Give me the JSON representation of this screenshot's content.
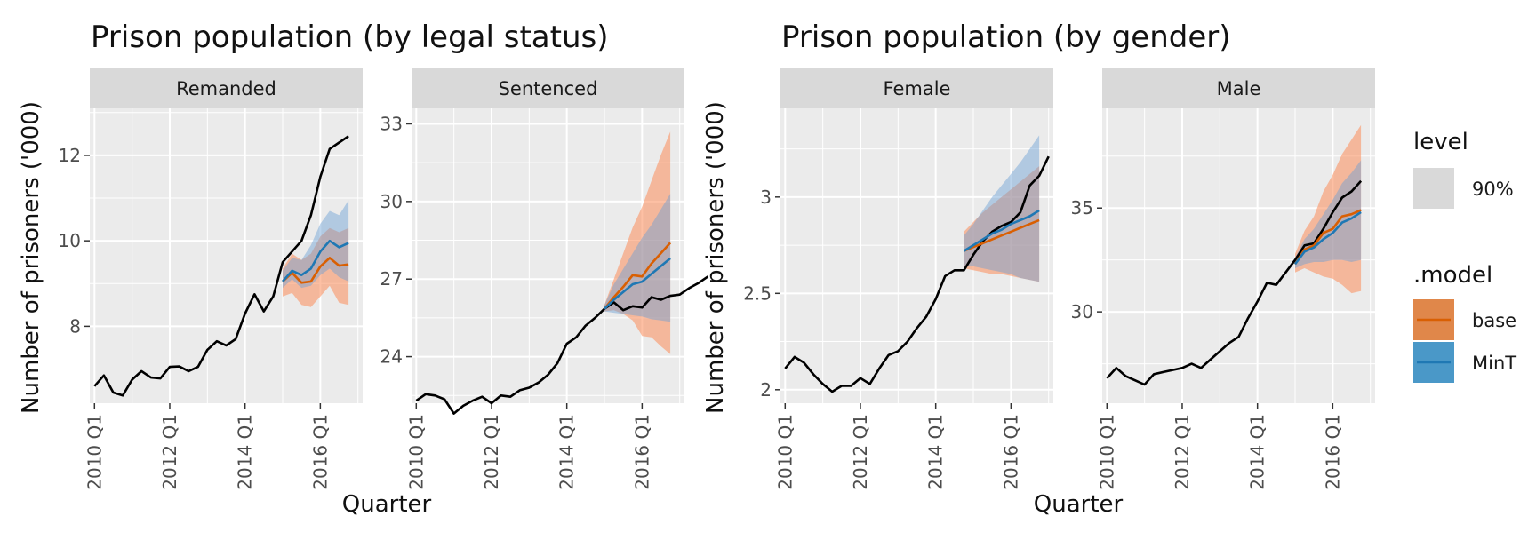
{
  "colors": {
    "panel_bg": "#EBEBEB",
    "strip_bg": "#D9D9D9",
    "grid": "#FFFFFF",
    "actual_line": "#000000",
    "base": "#D95F02",
    "base_fill": "#FC8D59",
    "mint": "#1F78B4",
    "mint_fill": "#6A9FD4"
  },
  "chart_data": [
    {
      "type": "line",
      "title": "Prison population (by legal status)",
      "xlabel": "Quarter",
      "ylabel": "Number of prisoners ('000)",
      "x_ticks": [
        "2010 Q1",
        "2012 Q1",
        "2014 Q1",
        "2016 Q1"
      ],
      "facets": [
        {
          "strip": "Remanded",
          "ylim": [
            6.2,
            13.1
          ],
          "y_ticks": [
            8,
            10,
            12
          ],
          "actual": {
            "x_start": "2010 Q1",
            "values": [
              6.6,
              6.85,
              6.45,
              6.38,
              6.75,
              6.95,
              6.8,
              6.78,
              7.05,
              7.06,
              6.95,
              7.05,
              7.45,
              7.65,
              7.55,
              7.7,
              8.3,
              8.75,
              8.35,
              8.7,
              9.5,
              9.75,
              10.0,
              10.6,
              11.5,
              12.15,
              12.3,
              12.45
            ]
          },
          "forecast_start": "2015 Q1",
          "series": [
            {
              "name": "base",
              "mean": [
                9.05,
                9.25,
                9.02,
                9.05,
                9.4,
                9.6,
                9.42,
                9.45
              ],
              "lo90": [
                8.7,
                8.78,
                8.5,
                8.45,
                8.7,
                8.95,
                8.55,
                8.5
              ],
              "hi90": [
                9.35,
                9.7,
                9.55,
                9.7,
                10.1,
                10.3,
                10.2,
                10.3
              ]
            },
            {
              "name": "MinT",
              "mean": [
                9.05,
                9.3,
                9.2,
                9.35,
                9.75,
                10.0,
                9.85,
                9.95
              ],
              "lo90": [
                8.9,
                9.1,
                8.9,
                8.95,
                9.2,
                9.35,
                9.15,
                9.05
              ],
              "hi90": [
                9.3,
                9.6,
                9.55,
                9.9,
                10.4,
                10.7,
                10.6,
                10.95
              ]
            }
          ]
        },
        {
          "strip": "Sentenced",
          "ylim": [
            22.2,
            33.6
          ],
          "y_ticks": [
            24,
            27,
            30,
            33
          ],
          "actual": {
            "x_start": "2010 Q1",
            "values": [
              22.3,
              22.55,
              22.5,
              22.35,
              21.8,
              22.1,
              22.3,
              22.45,
              22.2,
              22.5,
              22.45,
              22.7,
              22.8,
              23.0,
              23.3,
              23.75,
              24.5,
              24.75,
              25.2,
              25.5,
              25.85,
              26.1,
              25.8,
              25.95,
              25.9,
              26.3,
              26.2,
              26.35,
              26.4,
              26.65,
              26.85,
              27.1
            ]
          },
          "forecast_start": "2015 Q1",
          "series": [
            {
              "name": "base",
              "mean": [
                25.85,
                26.3,
                26.7,
                27.15,
                27.1,
                27.6,
                28.0,
                28.4
              ],
              "lo90": [
                25.75,
                25.8,
                25.65,
                25.4,
                24.8,
                24.75,
                24.4,
                24.1
              ],
              "hi90": [
                26.0,
                27.0,
                28.0,
                29.0,
                29.8,
                30.8,
                31.8,
                32.7
              ]
            },
            {
              "name": "MinT",
              "mean": [
                25.85,
                26.2,
                26.5,
                26.8,
                26.9,
                27.2,
                27.5,
                27.8
              ],
              "lo90": [
                25.75,
                25.7,
                25.65,
                25.6,
                25.55,
                25.45,
                25.4,
                25.35
              ],
              "hi90": [
                26.0,
                26.8,
                27.4,
                28.0,
                28.6,
                29.1,
                29.7,
                30.3
              ]
            }
          ]
        }
      ]
    },
    {
      "type": "line",
      "title": "Prison population (by gender)",
      "xlabel": "Quarter",
      "ylabel": "Number of prisoners ('000)",
      "x_ticks": [
        "2010 Q1",
        "2012 Q1",
        "2014 Q1",
        "2016 Q1"
      ],
      "facets": [
        {
          "strip": "Female",
          "ylim": [
            1.93,
            3.46
          ],
          "y_ticks": [
            2.0,
            2.5,
            3.0
          ],
          "actual": {
            "x_start": "2010 Q1",
            "values": [
              2.11,
              2.17,
              2.14,
              2.08,
              2.03,
              1.99,
              2.02,
              2.02,
              2.06,
              2.03,
              2.11,
              2.18,
              2.2,
              2.25,
              2.32,
              2.38,
              2.47,
              2.59,
              2.62,
              2.62,
              2.7,
              2.77,
              2.82,
              2.85,
              2.87,
              2.92,
              3.06,
              3.11,
              3.21
            ]
          },
          "forecast_start": "2014 Q4",
          "series": [
            {
              "name": "base",
              "mean": [
                2.72,
                2.74,
                2.76,
                2.78,
                2.8,
                2.82,
                2.84,
                2.86,
                2.88
              ],
              "lo90": [
                2.63,
                2.62,
                2.61,
                2.6,
                2.6,
                2.59,
                2.58,
                2.57,
                2.56
              ],
              "hi90": [
                2.82,
                2.87,
                2.92,
                2.96,
                3.0,
                3.04,
                3.08,
                3.12,
                3.16
              ]
            },
            {
              "name": "MinT",
              "mean": [
                2.72,
                2.75,
                2.78,
                2.81,
                2.83,
                2.86,
                2.88,
                2.9,
                2.93
              ],
              "lo90": [
                2.64,
                2.64,
                2.63,
                2.62,
                2.61,
                2.6,
                2.58,
                2.57,
                2.56
              ],
              "hi90": [
                2.8,
                2.86,
                2.93,
                3.0,
                3.06,
                3.12,
                3.18,
                3.25,
                3.32
              ]
            }
          ]
        },
        {
          "strip": "Male",
          "ylim": [
            25.6,
            39.8
          ],
          "y_ticks": [
            30,
            35
          ],
          "actual": {
            "x_start": "2010 Q1",
            "values": [
              26.8,
              27.3,
              26.9,
              26.7,
              26.5,
              27.0,
              27.1,
              27.2,
              27.3,
              27.5,
              27.3,
              27.7,
              28.1,
              28.5,
              28.8,
              29.7,
              30.5,
              31.4,
              31.3,
              31.9,
              32.5,
              33.2,
              33.3,
              34.0,
              34.8,
              35.5,
              35.8,
              36.3
            ]
          },
          "forecast_start": "2015 Q1",
          "series": [
            {
              "name": "base",
              "mean": [
                32.3,
                33.0,
                33.2,
                33.8,
                34.0,
                34.6,
                34.7,
                34.9
              ],
              "lo90": [
                31.9,
                32.1,
                31.9,
                31.7,
                31.6,
                31.3,
                30.9,
                31.0
              ],
              "hi90": [
                32.8,
                33.9,
                34.6,
                35.8,
                36.6,
                37.6,
                38.3,
                39.0
              ]
            },
            {
              "name": "MinT",
              "mean": [
                32.3,
                32.9,
                33.1,
                33.5,
                33.8,
                34.3,
                34.5,
                34.8
              ],
              "lo90": [
                32.1,
                32.3,
                32.4,
                32.4,
                32.5,
                32.5,
                32.4,
                32.5
              ],
              "hi90": [
                32.6,
                33.5,
                34.0,
                34.7,
                35.4,
                36.2,
                36.7,
                37.3
              ]
            }
          ]
        }
      ]
    }
  ],
  "legend": {
    "level_title": "level",
    "level_label": "90%",
    "model_title": ".model",
    "model_items": [
      {
        "label": "base",
        "fill": "#E0874A",
        "line": "#D95F02"
      },
      {
        "label": "MinT",
        "fill": "#4A98C8",
        "line": "#1F78B4"
      }
    ],
    "level_swatch": "#D9D9D9"
  }
}
